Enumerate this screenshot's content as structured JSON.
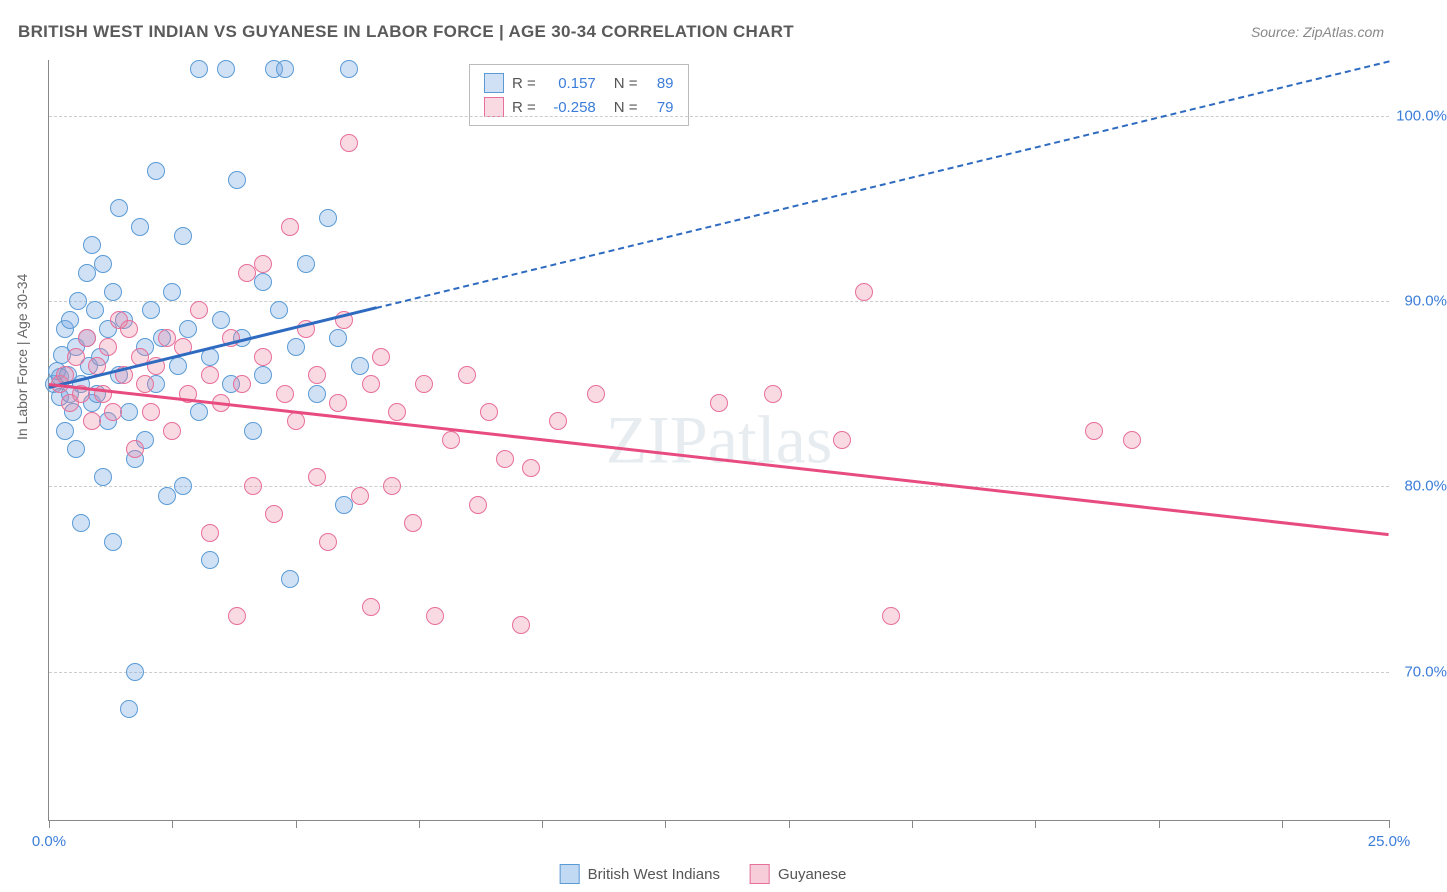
{
  "title": "BRITISH WEST INDIAN VS GUYANESE IN LABOR FORCE | AGE 30-34 CORRELATION CHART",
  "source": "Source: ZipAtlas.com",
  "ylabel": "In Labor Force | Age 30-34",
  "watermark": "ZIPatlas",
  "chart": {
    "type": "scatter",
    "xlim": [
      0,
      25
    ],
    "ylim": [
      62,
      103
    ],
    "xtick_positions": [
      0,
      2.3,
      4.6,
      6.9,
      9.2,
      11.5,
      13.8,
      16.1,
      18.4,
      20.7,
      23.0,
      25.0
    ],
    "xtick_labels": {
      "0": "0.0%",
      "25": "25.0%"
    },
    "ytick_positions": [
      70,
      80,
      90,
      100
    ],
    "ytick_labels": [
      "70.0%",
      "80.0%",
      "90.0%",
      "100.0%"
    ],
    "grid_color": "#cccccc",
    "axis_color": "#888888",
    "background_color": "#ffffff",
    "axis_label_color": "#3b7dd8",
    "point_radius": 9,
    "series": [
      {
        "name": "British West Indians",
        "fill": "rgba(120,170,230,0.35)",
        "stroke": "#5b9bd5",
        "R": "0.157",
        "N": "89",
        "trend": {
          "x1": 0,
          "y1": 85.4,
          "x2": 6.1,
          "y2": 89.7,
          "color": "#2e6bc0",
          "width": 2.5
        },
        "trend_extended": {
          "x1": 6.1,
          "y1": 89.7,
          "x2": 25,
          "y2": 103,
          "color": "#2e6bc0",
          "dash": true
        },
        "points": [
          [
            0.1,
            85.5
          ],
          [
            0.15,
            86.2
          ],
          [
            0.2,
            84.8
          ],
          [
            0.2,
            85.9
          ],
          [
            0.25,
            87.1
          ],
          [
            0.3,
            83.0
          ],
          [
            0.3,
            88.5
          ],
          [
            0.35,
            86.0
          ],
          [
            0.4,
            85.0
          ],
          [
            0.4,
            89.0
          ],
          [
            0.45,
            84.0
          ],
          [
            0.5,
            87.5
          ],
          [
            0.5,
            82.0
          ],
          [
            0.55,
            90.0
          ],
          [
            0.6,
            85.5
          ],
          [
            0.6,
            78.0
          ],
          [
            0.7,
            88.0
          ],
          [
            0.7,
            91.5
          ],
          [
            0.75,
            86.5
          ],
          [
            0.8,
            84.5
          ],
          [
            0.8,
            93.0
          ],
          [
            0.85,
            89.5
          ],
          [
            0.9,
            85.0
          ],
          [
            0.95,
            87.0
          ],
          [
            1.0,
            80.5
          ],
          [
            1.0,
            92.0
          ],
          [
            1.1,
            88.5
          ],
          [
            1.1,
            83.5
          ],
          [
            1.2,
            90.5
          ],
          [
            1.2,
            77.0
          ],
          [
            1.3,
            95.0
          ],
          [
            1.3,
            86.0
          ],
          [
            1.4,
            89.0
          ],
          [
            1.5,
            84.0
          ],
          [
            1.5,
            68.0
          ],
          [
            1.6,
            70.0
          ],
          [
            1.6,
            81.5
          ],
          [
            1.7,
            94.0
          ],
          [
            1.8,
            87.5
          ],
          [
            1.8,
            82.5
          ],
          [
            1.9,
            89.5
          ],
          [
            2.0,
            85.5
          ],
          [
            2.0,
            97.0
          ],
          [
            2.1,
            88.0
          ],
          [
            2.2,
            79.5
          ],
          [
            2.3,
            90.5
          ],
          [
            2.4,
            86.5
          ],
          [
            2.5,
            93.5
          ],
          [
            2.5,
            80.0
          ],
          [
            2.6,
            88.5
          ],
          [
            2.8,
            102.5
          ],
          [
            2.8,
            84.0
          ],
          [
            3.0,
            87.0
          ],
          [
            3.0,
            76.0
          ],
          [
            3.2,
            89.0
          ],
          [
            3.3,
            102.5
          ],
          [
            3.4,
            85.5
          ],
          [
            3.5,
            96.5
          ],
          [
            3.6,
            88.0
          ],
          [
            3.8,
            83.0
          ],
          [
            4.0,
            91.0
          ],
          [
            4.0,
            86.0
          ],
          [
            4.2,
            102.5
          ],
          [
            4.3,
            89.5
          ],
          [
            4.4,
            102.5
          ],
          [
            4.5,
            75.0
          ],
          [
            4.6,
            87.5
          ],
          [
            4.8,
            92.0
          ],
          [
            5.0,
            85.0
          ],
          [
            5.2,
            94.5
          ],
          [
            5.4,
            88.0
          ],
          [
            5.5,
            79.0
          ],
          [
            5.6,
            102.5
          ],
          [
            5.8,
            86.5
          ]
        ]
      },
      {
        "name": "Guyanese",
        "fill": "rgba(235,130,160,0.30)",
        "stroke": "#e76f9b",
        "R": "-0.258",
        "N": "79",
        "trend": {
          "x1": 0,
          "y1": 85.6,
          "x2": 25,
          "y2": 77.5,
          "color": "#e84b7f",
          "width": 2.5
        },
        "points": [
          [
            0.2,
            85.5
          ],
          [
            0.3,
            86.0
          ],
          [
            0.4,
            84.5
          ],
          [
            0.5,
            87.0
          ],
          [
            0.6,
            85.0
          ],
          [
            0.7,
            88.0
          ],
          [
            0.8,
            83.5
          ],
          [
            0.9,
            86.5
          ],
          [
            1.0,
            85.0
          ],
          [
            1.1,
            87.5
          ],
          [
            1.2,
            84.0
          ],
          [
            1.3,
            89.0
          ],
          [
            1.4,
            86.0
          ],
          [
            1.5,
            88.5
          ],
          [
            1.6,
            82.0
          ],
          [
            1.7,
            87.0
          ],
          [
            1.8,
            85.5
          ],
          [
            1.9,
            84.0
          ],
          [
            2.0,
            86.5
          ],
          [
            2.2,
            88.0
          ],
          [
            2.3,
            83.0
          ],
          [
            2.5,
            87.5
          ],
          [
            2.6,
            85.0
          ],
          [
            2.8,
            89.5
          ],
          [
            3.0,
            77.5
          ],
          [
            3.0,
            86.0
          ],
          [
            3.2,
            84.5
          ],
          [
            3.4,
            88.0
          ],
          [
            3.5,
            73.0
          ],
          [
            3.6,
            85.5
          ],
          [
            3.7,
            91.5
          ],
          [
            3.8,
            80.0
          ],
          [
            4.0,
            87.0
          ],
          [
            4.0,
            92.0
          ],
          [
            4.2,
            78.5
          ],
          [
            4.4,
            85.0
          ],
          [
            4.5,
            94.0
          ],
          [
            4.6,
            83.5
          ],
          [
            4.8,
            88.5
          ],
          [
            5.0,
            80.5
          ],
          [
            5.0,
            86.0
          ],
          [
            5.2,
            77.0
          ],
          [
            5.4,
            84.5
          ],
          [
            5.5,
            89.0
          ],
          [
            5.6,
            98.5
          ],
          [
            5.8,
            79.5
          ],
          [
            6.0,
            85.5
          ],
          [
            6.0,
            73.5
          ],
          [
            6.2,
            87.0
          ],
          [
            6.4,
            80.0
          ],
          [
            6.5,
            84.0
          ],
          [
            6.8,
            78.0
          ],
          [
            7.0,
            85.5
          ],
          [
            7.2,
            73.0
          ],
          [
            7.5,
            82.5
          ],
          [
            7.8,
            86.0
          ],
          [
            8.0,
            79.0
          ],
          [
            8.2,
            84.0
          ],
          [
            8.5,
            81.5
          ],
          [
            8.8,
            72.5
          ],
          [
            9.0,
            81.0
          ],
          [
            9.5,
            83.5
          ],
          [
            10.2,
            85.0
          ],
          [
            12.5,
            84.5
          ],
          [
            13.5,
            85.0
          ],
          [
            14.8,
            82.5
          ],
          [
            15.2,
            90.5
          ],
          [
            15.7,
            73.0
          ],
          [
            19.5,
            83.0
          ],
          [
            20.2,
            82.5
          ]
        ]
      }
    ]
  },
  "legend_bottom": [
    {
      "label": "British West Indians",
      "fill": "rgba(120,170,230,0.45)",
      "stroke": "#5b9bd5"
    },
    {
      "label": "Guyanese",
      "fill": "rgba(235,130,160,0.40)",
      "stroke": "#e76f9b"
    }
  ]
}
